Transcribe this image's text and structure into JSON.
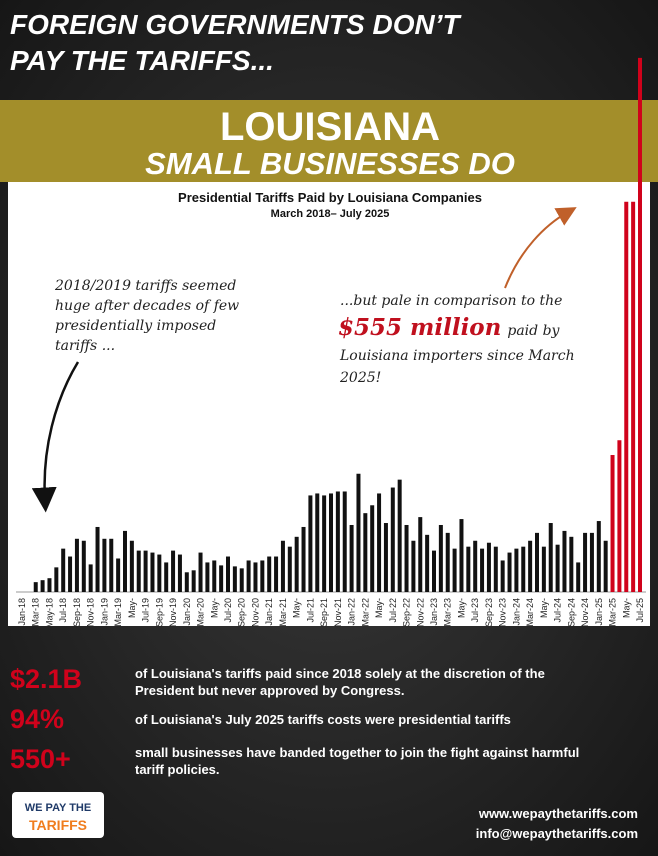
{
  "header": {
    "lines": [
      "FOREIGN GOVERNMENTS DON’T",
      "PAY THE TARIFFS..."
    ]
  },
  "banner": {
    "title": "LOUISIANA",
    "subtitle": "SMALL BUSINESSES DO"
  },
  "chart_data": {
    "type": "bar",
    "title": "Presidential Tariffs Paid by Louisiana Companies",
    "subtitle": "March 2018– July 2025",
    "annotations": [
      {
        "lines": [
          "2018/2019 tariffs seemed",
          "huge after decades of few",
          "presidentially imposed",
          "tariffs ..."
        ]
      },
      {
        "lines": [
          "...but pale in comparison to the",
          "paid by",
          "Louisiana importers since March",
          "2025!"
        ],
        "highlight": "$555 million"
      }
    ],
    "categories": [
      "Jan-18",
      null,
      "Mar-18",
      null,
      "May-18",
      null,
      "Jul-18",
      null,
      "Sep-18",
      null,
      "Nov-18",
      null,
      "Jan-19",
      null,
      "Mar-19",
      null,
      "May-",
      null,
      "Jul-19",
      null,
      "Sep-19",
      null,
      "Nov-19",
      null,
      "Jan-20",
      null,
      "Mar-20",
      null,
      "May-",
      null,
      "Jul-20",
      null,
      "Sep-20",
      null,
      "Nov-20",
      null,
      "Jan-21",
      null,
      "Mar-21",
      null,
      "May-",
      null,
      "Jul-21",
      null,
      "Sep-21",
      null,
      "Nov-21",
      null,
      "Jan-22",
      null,
      "Mar-22",
      null,
      "May-",
      null,
      "Jul-22",
      null,
      "Sep-22",
      null,
      "Nov-22",
      null,
      "Jan-23",
      null,
      "Mar-23",
      null,
      "May-",
      null,
      "Jul-23",
      null,
      "Sep-23",
      null,
      "Nov-23",
      null,
      "Jan-24",
      null,
      "Mar-24",
      null,
      "May-",
      null,
      "Jul-24",
      null,
      "Sep-24",
      null,
      "Nov-24",
      null,
      "Jan-25",
      null,
      "Mar-25",
      null,
      "May-",
      null,
      "Jul-25"
    ],
    "values": [
      0,
      0,
      10,
      12,
      14,
      25,
      44,
      36,
      54,
      52,
      28,
      66,
      54,
      54,
      34,
      62,
      52,
      42,
      42,
      40,
      38,
      30,
      42,
      38,
      20,
      22,
      40,
      30,
      32,
      27,
      36,
      26,
      24,
      32,
      30,
      32,
      36,
      36,
      52,
      46,
      56,
      66,
      98,
      100,
      98,
      100,
      102,
      102,
      68,
      120,
      80,
      88,
      100,
      70,
      106,
      114,
      68,
      52,
      76,
      58,
      42,
      68,
      60,
      44,
      74,
      46,
      52,
      44,
      50,
      46,
      32,
      40,
      44,
      46,
      52,
      60,
      46,
      70,
      48,
      62,
      56,
      30,
      60,
      60,
      72,
      52,
      139,
      154,
      396,
      396,
      542
    ],
    "colors": [
      "#111",
      "#111",
      "#111",
      "#111",
      "#111",
      "#111",
      "#111",
      "#111",
      "#111",
      "#111",
      "#111",
      "#111",
      "#111",
      "#111",
      "#111",
      "#111",
      "#111",
      "#111",
      "#111",
      "#111",
      "#111",
      "#111",
      "#111",
      "#111",
      "#111",
      "#111",
      "#111",
      "#111",
      "#111",
      "#111",
      "#111",
      "#111",
      "#111",
      "#111",
      "#111",
      "#111",
      "#111",
      "#111",
      "#111",
      "#111",
      "#111",
      "#111",
      "#111",
      "#111",
      "#111",
      "#111",
      "#111",
      "#111",
      "#111",
      "#111",
      "#111",
      "#111",
      "#111",
      "#111",
      "#111",
      "#111",
      "#111",
      "#111",
      "#111",
      "#111",
      "#111",
      "#111",
      "#111",
      "#111",
      "#111",
      "#111",
      "#111",
      "#111",
      "#111",
      "#111",
      "#111",
      "#111",
      "#111",
      "#111",
      "#111",
      "#111",
      "#111",
      "#111",
      "#111",
      "#111",
      "#111",
      "#111",
      "#111",
      "#111",
      "#111",
      "#111",
      "#d0021b",
      "#d0021b",
      "#d0021b",
      "#d0021b",
      "#d0021b"
    ],
    "ylim": [
      0,
      550
    ]
  },
  "stats": [
    {
      "value": "$2.1B",
      "lines": [
        "of Louisiana's tariffs paid since 2018 solely at the discretion of the",
        "President but never approved by Congress."
      ]
    },
    {
      "value": "94%",
      "lines": [
        "of Louisiana's July 2025 tariffs costs were presidential tariffs"
      ]
    },
    {
      "value": "550+",
      "lines": [
        "small businesses have banded together to join the fight against harmful",
        "tariff policies."
      ]
    }
  ],
  "logo": {
    "line1": "WE PAY THE",
    "line2": "TARIFFS"
  },
  "contact": {
    "website": "www.wepaythetariffs.com",
    "email": "info@wepaythetariffs.com"
  }
}
